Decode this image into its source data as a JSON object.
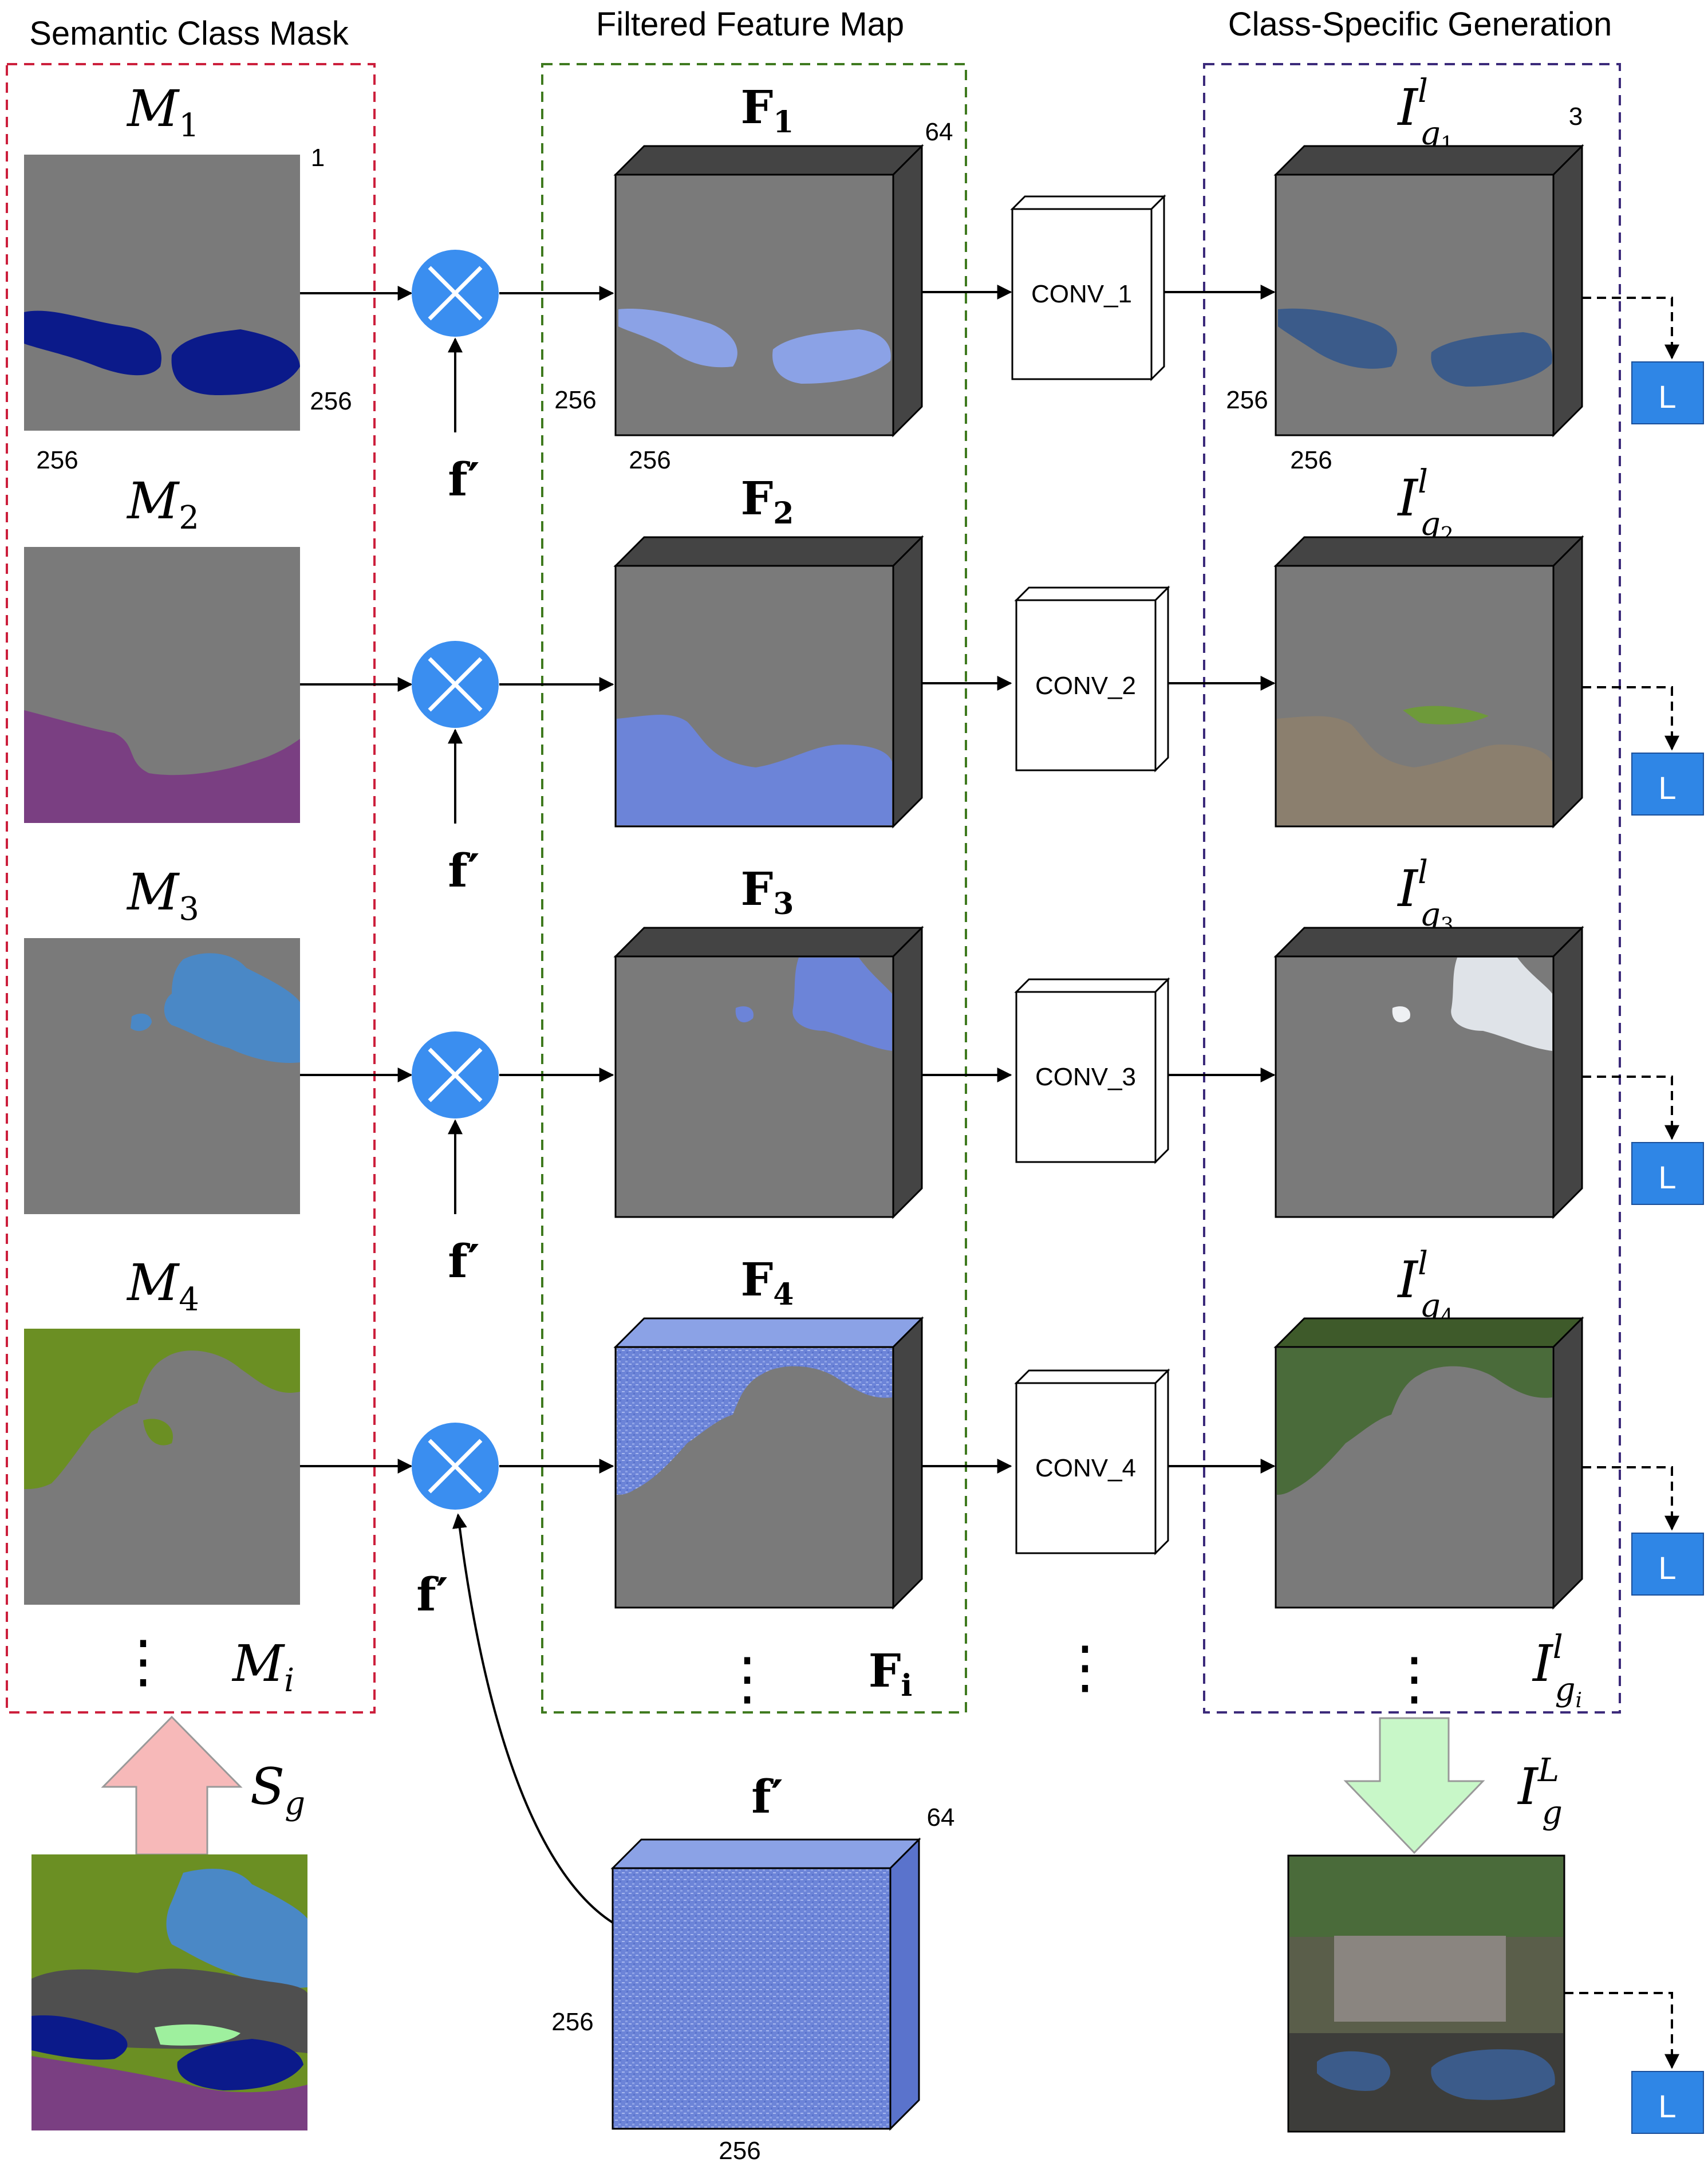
{
  "headers": {
    "left": "Semantic Class Mask",
    "middle": "Filtered Feature Map",
    "right": "Class-Specific Generation"
  },
  "masks": [
    {
      "label": "M",
      "sub": "1"
    },
    {
      "label": "M",
      "sub": "2"
    },
    {
      "label": "M",
      "sub": "3"
    },
    {
      "label": "M",
      "sub": "4"
    }
  ],
  "mask_general": {
    "label": "M",
    "sub": "i"
  },
  "features": [
    {
      "label": "F",
      "sub": "1"
    },
    {
      "label": "F",
      "sub": "2"
    },
    {
      "label": "F",
      "sub": "3"
    },
    {
      "label": "F",
      "sub": "4"
    }
  ],
  "feature_general": {
    "label": "F",
    "sub": "i"
  },
  "convs": [
    "CONV_1",
    "CONV_2",
    "CONV_3",
    "CONV_4"
  ],
  "outputs": [
    {
      "label": "I",
      "sup": "l",
      "sub": "g",
      "subsub": "1"
    },
    {
      "label": "I",
      "sup": "l",
      "sub": "g",
      "subsub": "2"
    },
    {
      "label": "I",
      "sup": "l",
      "sub": "g",
      "subsub": "3"
    },
    {
      "label": "I",
      "sup": "l",
      "sub": "g",
      "subsub": "4"
    }
  ],
  "output_general": {
    "label": "I",
    "sup": "l",
    "sub": "g",
    "subsub": "i"
  },
  "final_output": {
    "label": "I",
    "sup": "L",
    "sub": "g"
  },
  "f_prime": "f′",
  "segmap": {
    "label": "S",
    "sub": "g"
  },
  "loss_label": "L",
  "dims": {
    "mask_channels": "1",
    "size": "256",
    "feature_channels": "64",
    "output_channels": "3"
  },
  "ellipsis": "⋮",
  "colors": {
    "mask_box": "#cc1f3c",
    "feature_box": "#3f7a1f",
    "output_box": "#3b2a7a",
    "mult": "#3a8ef0",
    "loss": "#2f86e6",
    "gray": "#7a7a7a",
    "navy": "#0b1a8a",
    "purple": "#7a3f82",
    "sky": "#4a88c6",
    "olive": "#6b8f23",
    "blue_feat": "#6c84d8",
    "down_arrow": "#f7b9b9",
    "up_arrow": "#c8f7c8"
  }
}
